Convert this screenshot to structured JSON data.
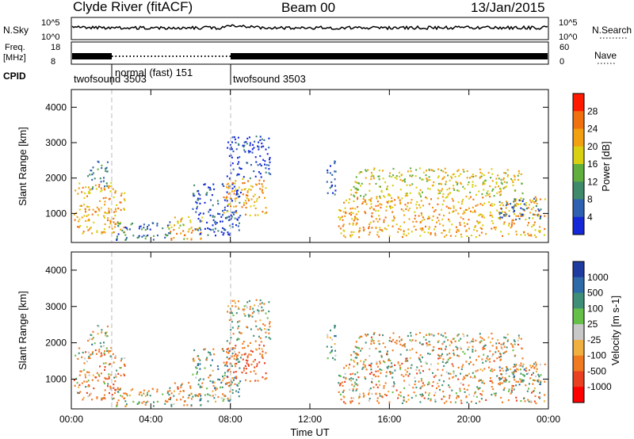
{
  "header": {
    "station": "Clyde River (fitACF)",
    "beam": "Beam 00",
    "date": "13/Jan/2015"
  },
  "sky_panel": {
    "label": "N.Sky",
    "ticks_left": [
      "10^5",
      "10^0"
    ],
    "ticks_right": [
      "10^5",
      "10^0"
    ],
    "right_label": "N.Search"
  },
  "freq_panel": {
    "label_line1": "Freq.",
    "label_line2": "[MHz]",
    "ticks_left": [
      "18",
      "8"
    ],
    "ticks_right": [
      "60",
      "0"
    ],
    "right_label": "Nave"
  },
  "cpid": {
    "label": "CPID",
    "segments": [
      {
        "name": "twofsound 3503",
        "start": 0,
        "end": 2
      },
      {
        "name": "normal (fast) 151",
        "start": 2,
        "end": 8
      },
      {
        "name": "twofsound 3503",
        "start": 8,
        "end": 24
      }
    ]
  },
  "power_panel": {
    "ylabel": "Slant Range [km]",
    "yticks": [
      "1000",
      "2000",
      "3000",
      "4000"
    ],
    "colorbar_label": "Power [dB]",
    "colorbar_ticks": [
      "4",
      "8",
      "12",
      "16",
      "20",
      "24",
      "28"
    ],
    "colors": [
      "#1428d8",
      "#2f5fb0",
      "#3f8a6a",
      "#5fae3e",
      "#d8d010",
      "#f0a010",
      "#f07010",
      "#ff1a00"
    ]
  },
  "velocity_panel": {
    "ylabel": "Slant Range [km]",
    "yticks": [
      "1000",
      "2000",
      "3000",
      "4000"
    ],
    "colorbar_label": "Velocity [m s-1]",
    "colorbar_ticks": [
      "1000",
      "500",
      "100",
      "25",
      "-25",
      "-100",
      "-500",
      "-1000"
    ],
    "colors": [
      "#1e3ca0",
      "#2f6aa8",
      "#3f8f78",
      "#66bf48",
      "#c8c8c8",
      "#f0b040",
      "#f07a20",
      "#e84020",
      "#ff0000"
    ]
  },
  "xaxis": {
    "label": "Time UT",
    "ticks": [
      "00:00",
      "04:00",
      "08:00",
      "12:00",
      "16:00",
      "20:00",
      "00:00"
    ]
  },
  "chart_data": {
    "type": "heatmap",
    "title": "Clyde River (fitACF)",
    "xlabel": "Time UT",
    "ylabel": "Slant Range [km]",
    "xlim": [
      0,
      24
    ],
    "ylim": [
      180,
      4500
    ],
    "time_markers_hours": [
      2,
      8
    ],
    "echo_regions": [
      {
        "t0": 0.1,
        "t1": 2.7,
        "r0": 450,
        "r1": 1900,
        "power_db": 28,
        "velocity": -300
      },
      {
        "t0": 0.8,
        "t1": 1.8,
        "r0": 1700,
        "r1": 2500,
        "power_db": 16,
        "velocity": 100
      },
      {
        "t0": 2.2,
        "t1": 5.0,
        "r0": 250,
        "r1": 800,
        "power_db": 14,
        "velocity": -50
      },
      {
        "t0": 4.8,
        "t1": 6.6,
        "r0": 250,
        "r1": 950,
        "power_db": 27,
        "velocity": -200
      },
      {
        "t0": 6.0,
        "t1": 8.5,
        "r0": 400,
        "r1": 1900,
        "power_db": 10,
        "velocity": 200
      },
      {
        "t0": 7.6,
        "t1": 9.8,
        "r0": 950,
        "r1": 2000,
        "power_db": 28,
        "velocity": -500
      },
      {
        "t0": 7.8,
        "t1": 10.0,
        "r0": 2000,
        "r1": 3200,
        "power_db": 9,
        "velocity": 0
      },
      {
        "t0": 12.8,
        "t1": 13.3,
        "r0": 1500,
        "r1": 2600,
        "power_db": 12,
        "velocity": 300
      },
      {
        "t0": 13.4,
        "t1": 23.8,
        "r0": 350,
        "r1": 1500,
        "power_db": 28,
        "velocity": -150
      },
      {
        "t0": 14.0,
        "t1": 22.8,
        "r0": 1500,
        "r1": 2300,
        "power_db": 24,
        "velocity": -100
      },
      {
        "t0": 21.5,
        "t1": 23.6,
        "r0": 850,
        "r1": 1450,
        "power_db": 12,
        "velocity": 200
      }
    ]
  }
}
